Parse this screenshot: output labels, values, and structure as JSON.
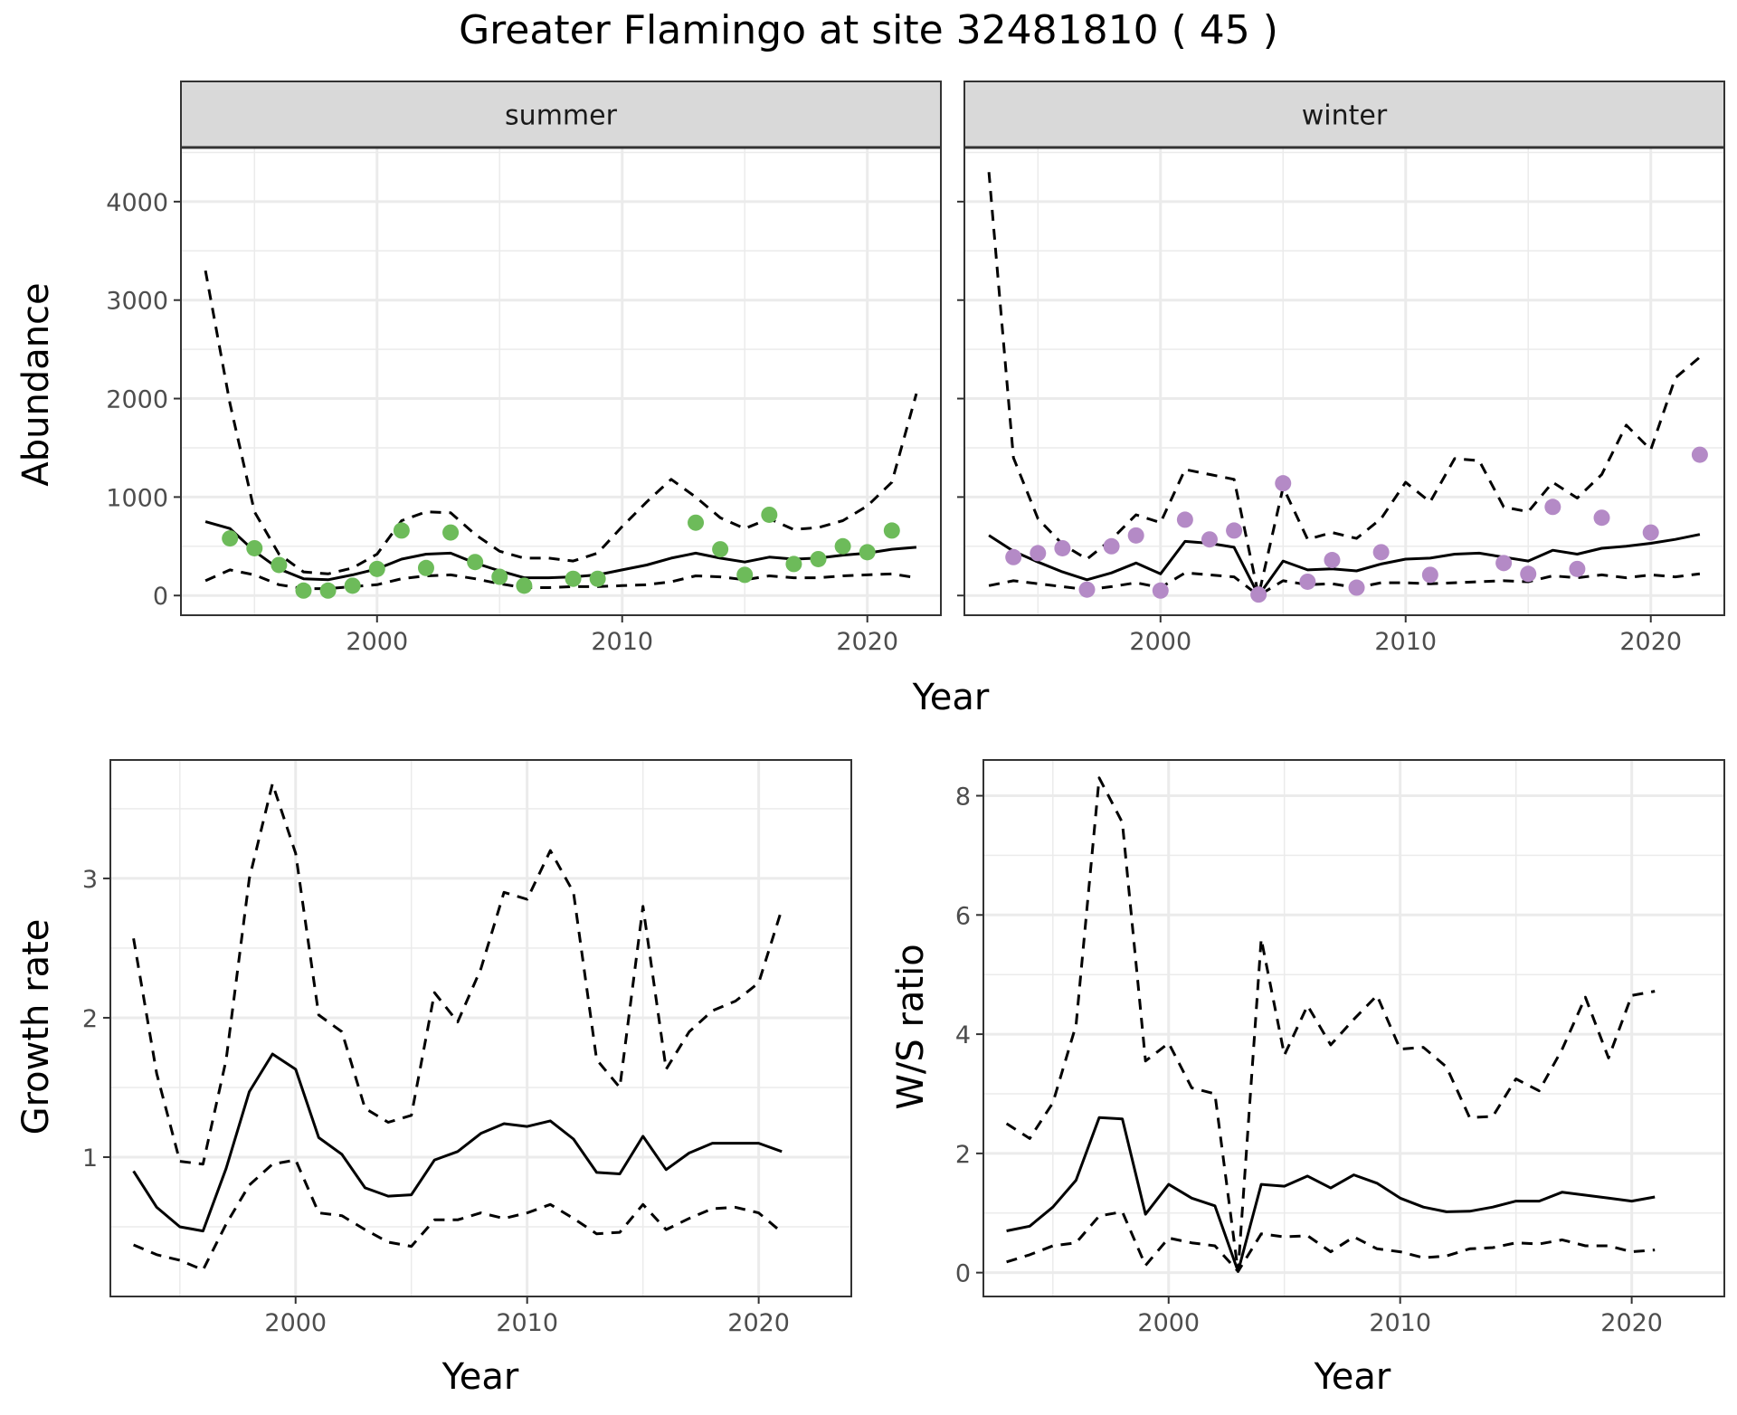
{
  "title": "Greater Flamingo at site 32481810 ( 45 )",
  "colors": {
    "summer_points": "#6dbb5a",
    "winter_points": "#b48ac6",
    "lines": "#000000",
    "strip": "#d9d9d9"
  },
  "chart_data": [
    {
      "type": "line",
      "facet": "summer",
      "xlabel": "Year",
      "ylabel": "Abundance",
      "xlim": [
        1992,
        2023
      ],
      "ylim": [
        -200,
        4550
      ],
      "xticks": [
        2000,
        2010,
        2020
      ],
      "yticks": [
        0,
        1000,
        2000,
        3000,
        4000
      ],
      "grid": true,
      "points": {
        "x": [
          1994,
          1995,
          1996,
          1997,
          1998,
          1999,
          2000,
          2001,
          2002,
          2003,
          2004,
          2005,
          2006,
          2008,
          2009,
          2013,
          2014,
          2015,
          2016,
          2017,
          2018,
          2019,
          2020,
          2021
        ],
        "y": [
          580,
          480,
          310,
          50,
          50,
          100,
          270,
          660,
          280,
          640,
          340,
          190,
          100,
          170,
          170,
          740,
          470,
          210,
          820,
          320,
          370,
          500,
          440,
          660
        ]
      },
      "x": [
        1993,
        1994,
        1995,
        1996,
        1997,
        1998,
        1999,
        2000,
        2001,
        2002,
        2003,
        2004,
        2005,
        2006,
        2007,
        2008,
        2009,
        2010,
        2011,
        2012,
        2013,
        2014,
        2015,
        2016,
        2017,
        2018,
        2019,
        2020,
        2021,
        2022
      ],
      "series": [
        {
          "style": "solid",
          "values": [
            750,
            680,
            450,
            270,
            170,
            160,
            210,
            270,
            370,
            420,
            430,
            330,
            250,
            180,
            180,
            190,
            210,
            260,
            310,
            380,
            430,
            380,
            340,
            390,
            370,
            380,
            410,
            430,
            470,
            490
          ]
        },
        {
          "style": "dashed",
          "values": [
            3300,
            1950,
            850,
            420,
            240,
            220,
            280,
            420,
            760,
            850,
            840,
            620,
            450,
            380,
            380,
            350,
            430,
            700,
            950,
            1180,
            1000,
            790,
            680,
            780,
            670,
            690,
            760,
            910,
            1150,
            2050
          ]
        },
        {
          "style": "dashed",
          "values": [
            150,
            260,
            210,
            110,
            70,
            70,
            90,
            110,
            170,
            200,
            210,
            170,
            120,
            80,
            80,
            90,
            90,
            100,
            110,
            140,
            200,
            190,
            160,
            200,
            180,
            180,
            200,
            210,
            220,
            180
          ]
        }
      ]
    },
    {
      "type": "line",
      "facet": "winter",
      "xlabel": "Year",
      "ylabel": "Abundance",
      "xlim": [
        1992,
        2023
      ],
      "ylim": [
        -200,
        4550
      ],
      "xticks": [
        2000,
        2010,
        2020
      ],
      "yticks": [
        0,
        1000,
        2000,
        3000,
        4000
      ],
      "grid": true,
      "points": {
        "x": [
          1994,
          1995,
          1996,
          1997,
          1998,
          1999,
          2000,
          2001,
          2002,
          2003,
          2004,
          2005,
          2006,
          2007,
          2008,
          2009,
          2011,
          2014,
          2015,
          2016,
          2017,
          2018,
          2020,
          2022
        ],
        "y": [
          390,
          430,
          480,
          60,
          500,
          610,
          50,
          770,
          570,
          660,
          10,
          1140,
          140,
          360,
          80,
          440,
          210,
          330,
          220,
          900,
          270,
          790,
          640,
          1430
        ]
      },
      "x": [
        1993,
        1994,
        1995,
        1996,
        1997,
        1998,
        1999,
        2000,
        2001,
        2002,
        2003,
        2004,
        2005,
        2006,
        2007,
        2008,
        2009,
        2010,
        2011,
        2012,
        2013,
        2014,
        2015,
        2016,
        2017,
        2018,
        2019,
        2020,
        2021,
        2022
      ],
      "series": [
        {
          "style": "solid",
          "values": [
            610,
            450,
            340,
            240,
            160,
            230,
            330,
            220,
            550,
            530,
            490,
            0,
            350,
            260,
            270,
            250,
            320,
            370,
            380,
            420,
            430,
            390,
            350,
            460,
            420,
            480,
            500,
            530,
            570,
            620
          ]
        },
        {
          "style": "dashed",
          "values": [
            4300,
            1400,
            780,
            520,
            370,
            570,
            820,
            740,
            1280,
            1230,
            1180,
            0,
            1100,
            570,
            640,
            580,
            780,
            1150,
            950,
            1390,
            1370,
            900,
            850,
            1150,
            990,
            1230,
            1730,
            1480,
            2210,
            2420
          ]
        },
        {
          "style": "dashed",
          "values": [
            100,
            150,
            120,
            90,
            60,
            90,
            130,
            80,
            230,
            210,
            190,
            0,
            150,
            110,
            120,
            80,
            130,
            130,
            120,
            130,
            140,
            150,
            140,
            200,
            180,
            210,
            180,
            210,
            190,
            220
          ]
        }
      ]
    },
    {
      "type": "line",
      "xlabel": "Year",
      "ylabel": "Growth rate",
      "xlim": [
        1992,
        2024
      ],
      "ylim": [
        0.0,
        3.85
      ],
      "xticks": [
        2000,
        2010,
        2020
      ],
      "yticks": [
        1,
        2,
        3
      ],
      "grid": true,
      "x": [
        1993,
        1994,
        1995,
        1996,
        1997,
        1998,
        1999,
        2000,
        2001,
        2002,
        2003,
        2004,
        2005,
        2006,
        2007,
        2008,
        2009,
        2010,
        2011,
        2012,
        2013,
        2014,
        2015,
        2016,
        2017,
        2018,
        2019,
        2020,
        2021
      ],
      "series": [
        {
          "style": "solid",
          "values": [
            0.9,
            0.64,
            0.5,
            0.47,
            0.92,
            1.47,
            1.74,
            1.63,
            1.14,
            1.02,
            0.78,
            0.72,
            0.73,
            0.98,
            1.04,
            1.17,
            1.24,
            1.22,
            1.26,
            1.13,
            0.89,
            0.88,
            1.15,
            0.91,
            1.03,
            1.1,
            1.1,
            1.1,
            1.04
          ]
        },
        {
          "style": "dashed",
          "values": [
            2.57,
            1.6,
            0.97,
            0.95,
            1.7,
            3.0,
            3.68,
            3.18,
            2.02,
            1.9,
            1.35,
            1.25,
            1.3,
            2.18,
            1.97,
            2.35,
            2.9,
            2.85,
            3.2,
            2.9,
            1.7,
            1.5,
            2.8,
            1.63,
            1.9,
            2.05,
            2.12,
            2.25,
            2.78
          ]
        },
        {
          "style": "dashed",
          "values": [
            0.37,
            0.3,
            0.26,
            0.19,
            0.52,
            0.8,
            0.95,
            0.98,
            0.6,
            0.58,
            0.48,
            0.39,
            0.36,
            0.55,
            0.55,
            0.6,
            0.56,
            0.6,
            0.66,
            0.56,
            0.45,
            0.46,
            0.66,
            0.48,
            0.56,
            0.63,
            0.64,
            0.6,
            0.46
          ]
        }
      ]
    },
    {
      "type": "line",
      "xlabel": "Year",
      "ylabel": "W/S ratio",
      "xlim": [
        1992,
        2024
      ],
      "ylim": [
        -0.4,
        8.6
      ],
      "xticks": [
        2000,
        2010,
        2020
      ],
      "yticks": [
        0,
        2,
        4,
        6,
        8
      ],
      "grid": true,
      "x": [
        1993,
        1994,
        1995,
        1996,
        1997,
        1998,
        1999,
        2000,
        2001,
        2002,
        2003,
        2004,
        2005,
        2006,
        2007,
        2008,
        2009,
        2010,
        2011,
        2012,
        2013,
        2014,
        2015,
        2016,
        2017,
        2018,
        2019,
        2020,
        2021
      ],
      "series": [
        {
          "style": "solid",
          "values": [
            0.7,
            0.78,
            1.1,
            1.55,
            2.6,
            2.58,
            0.98,
            1.48,
            1.25,
            1.12,
            0.02,
            1.48,
            1.45,
            1.62,
            1.42,
            1.64,
            1.5,
            1.25,
            1.1,
            1.02,
            1.03,
            1.1,
            1.2,
            1.2,
            1.35,
            1.3,
            1.25,
            1.2,
            1.27
          ]
        },
        {
          "style": "dashed",
          "values": [
            2.5,
            2.25,
            2.85,
            4.15,
            8.3,
            7.55,
            3.55,
            3.85,
            3.1,
            3.0,
            0.02,
            5.6,
            3.65,
            4.48,
            3.82,
            4.25,
            4.65,
            3.75,
            3.78,
            3.45,
            2.6,
            2.62,
            3.25,
            3.05,
            3.75,
            4.62,
            3.6,
            4.65,
            4.72
          ]
        },
        {
          "style": "dashed",
          "values": [
            0.18,
            0.3,
            0.45,
            0.5,
            0.95,
            1.02,
            0.12,
            0.58,
            0.5,
            0.45,
            0.02,
            0.65,
            0.6,
            0.62,
            0.35,
            0.6,
            0.4,
            0.35,
            0.25,
            0.28,
            0.4,
            0.42,
            0.5,
            0.48,
            0.55,
            0.45,
            0.45,
            0.35,
            0.38
          ]
        }
      ]
    }
  ]
}
